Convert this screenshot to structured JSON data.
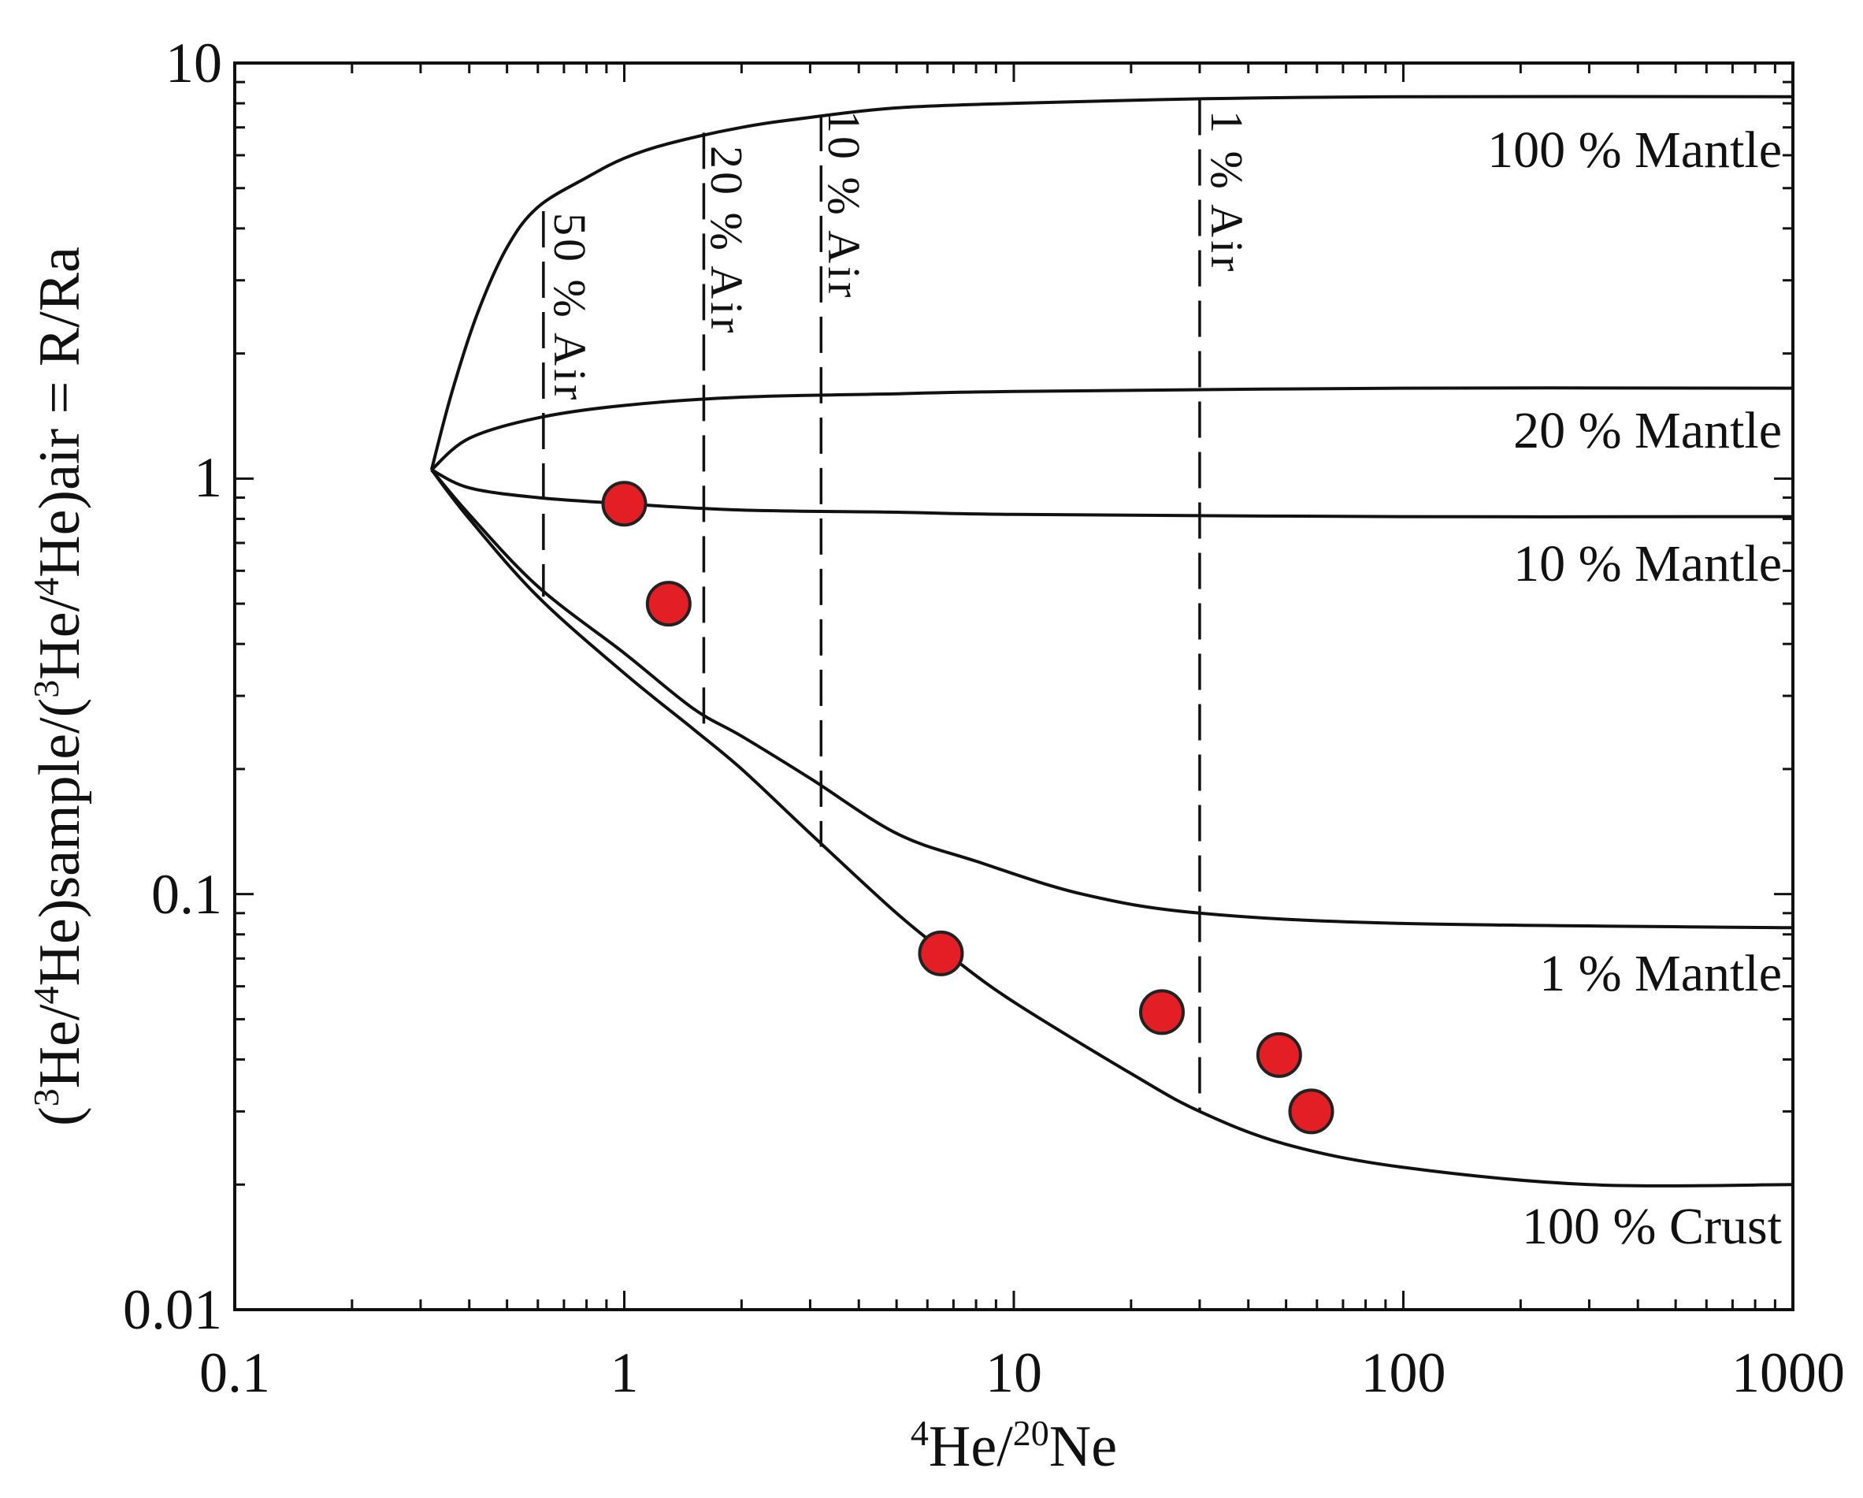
{
  "chart_data": {
    "type": "scatter",
    "title": "",
    "xscale": "log",
    "yscale": "log",
    "xlim": [
      0.1,
      1000
    ],
    "ylim": [
      0.01,
      10
    ],
    "xticks": [
      0.1,
      1,
      10,
      100,
      1000
    ],
    "yticks": [
      0.01,
      0.1,
      1,
      10
    ],
    "xtick_labels": [
      "0.1",
      "1",
      "10",
      "100",
      "1000"
    ],
    "ytick_labels": [
      "0.01",
      "0.1",
      "1",
      "10"
    ],
    "xlabel": {
      "pre_sup": "4",
      "base1": "He/",
      "mid_sup": "20",
      "base2": "Ne"
    },
    "ylabel": {
      "p1": "(",
      "s1": "3",
      "p2": "He/",
      "s2": "4",
      "p3": "He)sample/(",
      "s3": "3",
      "p4": "He/",
      "s4": "4",
      "p5": "He)air = R/Ra"
    },
    "mixing_curves": [
      {
        "label": "100 % Mantle",
        "x": [
          0.32,
          0.36,
          0.42,
          0.5,
          0.6,
          0.8,
          1.0,
          1.3,
          2.0,
          3.0,
          5.0,
          10,
          30,
          100,
          1000
        ],
        "y": [
          1.05,
          1.6,
          2.5,
          3.6,
          4.5,
          5.3,
          5.9,
          6.4,
          7.0,
          7.4,
          7.8,
          8.0,
          8.2,
          8.3,
          8.3
        ]
      },
      {
        "label": "20 % Mantle",
        "x": [
          0.32,
          0.4,
          0.6,
          1.0,
          2.0,
          5.0,
          10,
          100,
          1000
        ],
        "y": [
          1.05,
          1.25,
          1.4,
          1.5,
          1.57,
          1.6,
          1.62,
          1.65,
          1.65
        ]
      },
      {
        "label": "10 % Mantle",
        "x": [
          0.32,
          0.4,
          0.6,
          1.0,
          2.0,
          5.0,
          10,
          100,
          1000
        ],
        "y": [
          1.05,
          0.95,
          0.9,
          0.87,
          0.84,
          0.83,
          0.82,
          0.81,
          0.81
        ]
      },
      {
        "label": "1 % Mantle",
        "x": [
          0.32,
          0.4,
          0.6,
          1.0,
          1.5,
          2.0,
          3.0,
          5.0,
          8.0,
          15,
          30,
          100,
          1000
        ],
        "y": [
          1.05,
          0.82,
          0.55,
          0.38,
          0.28,
          0.24,
          0.19,
          0.14,
          0.12,
          0.1,
          0.09,
          0.085,
          0.083
        ]
      },
      {
        "label": "100 % Crust",
        "x": [
          0.32,
          0.4,
          0.6,
          1.0,
          1.5,
          2.0,
          3.0,
          5.0,
          7.0,
          10,
          20,
          30,
          50,
          100,
          300,
          1000
        ],
        "y": [
          1.05,
          0.8,
          0.52,
          0.34,
          0.25,
          0.2,
          0.14,
          0.09,
          0.07,
          0.055,
          0.037,
          0.03,
          0.025,
          0.022,
          0.02,
          0.02
        ]
      }
    ],
    "air_lines": [
      {
        "label": "50 % Air",
        "x": 0.62,
        "y_top": 4.4,
        "y_bottom": 0.52
      },
      {
        "label": "20 % Air",
        "x": 1.6,
        "y_top": 6.8,
        "y_bottom": 0.255
      },
      {
        "label": "10 % Air",
        "x": 3.2,
        "y_top": 7.5,
        "y_bottom": 0.13
      },
      {
        "label": "1 % Air",
        "x": 30,
        "y_top": 8.2,
        "y_bottom": 0.03
      }
    ],
    "points": {
      "x": [
        1.0,
        1.3,
        6.5,
        24,
        48,
        58
      ],
      "y": [
        0.87,
        0.5,
        0.072,
        0.052,
        0.041,
        0.03
      ],
      "color": "#e31e24",
      "edge_color": "#222222"
    },
    "legend": "none",
    "grid": false
  }
}
